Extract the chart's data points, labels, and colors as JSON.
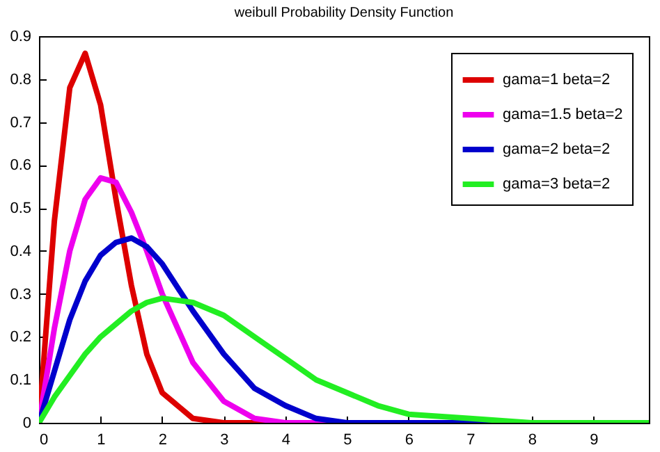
{
  "chart_data": {
    "type": "line",
    "title": "weibull Probability Density Function",
    "x": [
      0,
      0.25,
      0.5,
      0.75,
      1,
      1.25,
      1.5,
      1.75,
      2,
      2.5,
      3,
      3.5,
      4,
      4.5,
      5,
      5.5,
      6,
      7,
      8,
      9.9
    ],
    "series": [
      {
        "name": "gama=1 beta=2",
        "color": "#dd0000",
        "values": [
          0,
          0.47,
          0.78,
          0.86,
          0.74,
          0.52,
          0.32,
          0.16,
          0.07,
          0.01,
          0,
          0,
          0,
          0,
          null,
          null,
          null,
          null,
          null,
          null
        ]
      },
      {
        "name": "gama=1.5 beta=2",
        "color": "#ee00ee",
        "values": [
          0,
          0.22,
          0.4,
          0.52,
          0.57,
          0.56,
          0.49,
          0.4,
          0.3,
          0.14,
          0.05,
          0.01,
          0,
          0,
          0,
          0,
          null,
          null,
          null,
          null
        ]
      },
      {
        "name": "gama=2 beta=2",
        "color": "#0000cc",
        "values": [
          0,
          0.12,
          0.24,
          0.33,
          0.39,
          0.42,
          0.43,
          0.41,
          0.37,
          0.26,
          0.16,
          0.08,
          0.04,
          0.01,
          0,
          0,
          0,
          0,
          0,
          0
        ]
      },
      {
        "name": "gama=3 beta=2",
        "color": "#22ee22",
        "values": [
          0,
          0.06,
          0.11,
          0.16,
          0.2,
          0.23,
          0.26,
          0.28,
          0.29,
          0.28,
          0.25,
          0.2,
          0.15,
          0.1,
          0.07,
          0.04,
          0.02,
          0.01,
          0,
          0
        ]
      }
    ],
    "xlim": [
      0,
      9.9
    ],
    "xticks": [
      0,
      1,
      2,
      3,
      4,
      5,
      6,
      7,
      8,
      9
    ],
    "ylim": [
      0,
      0.9
    ],
    "yticks": [
      {
        "value": 0,
        "label": "0"
      },
      0.1,
      0.2,
      0.3,
      0.4,
      0.5,
      0.6,
      0.7,
      0.8,
      0.9
    ],
    "grid": false,
    "legend": "top right"
  }
}
